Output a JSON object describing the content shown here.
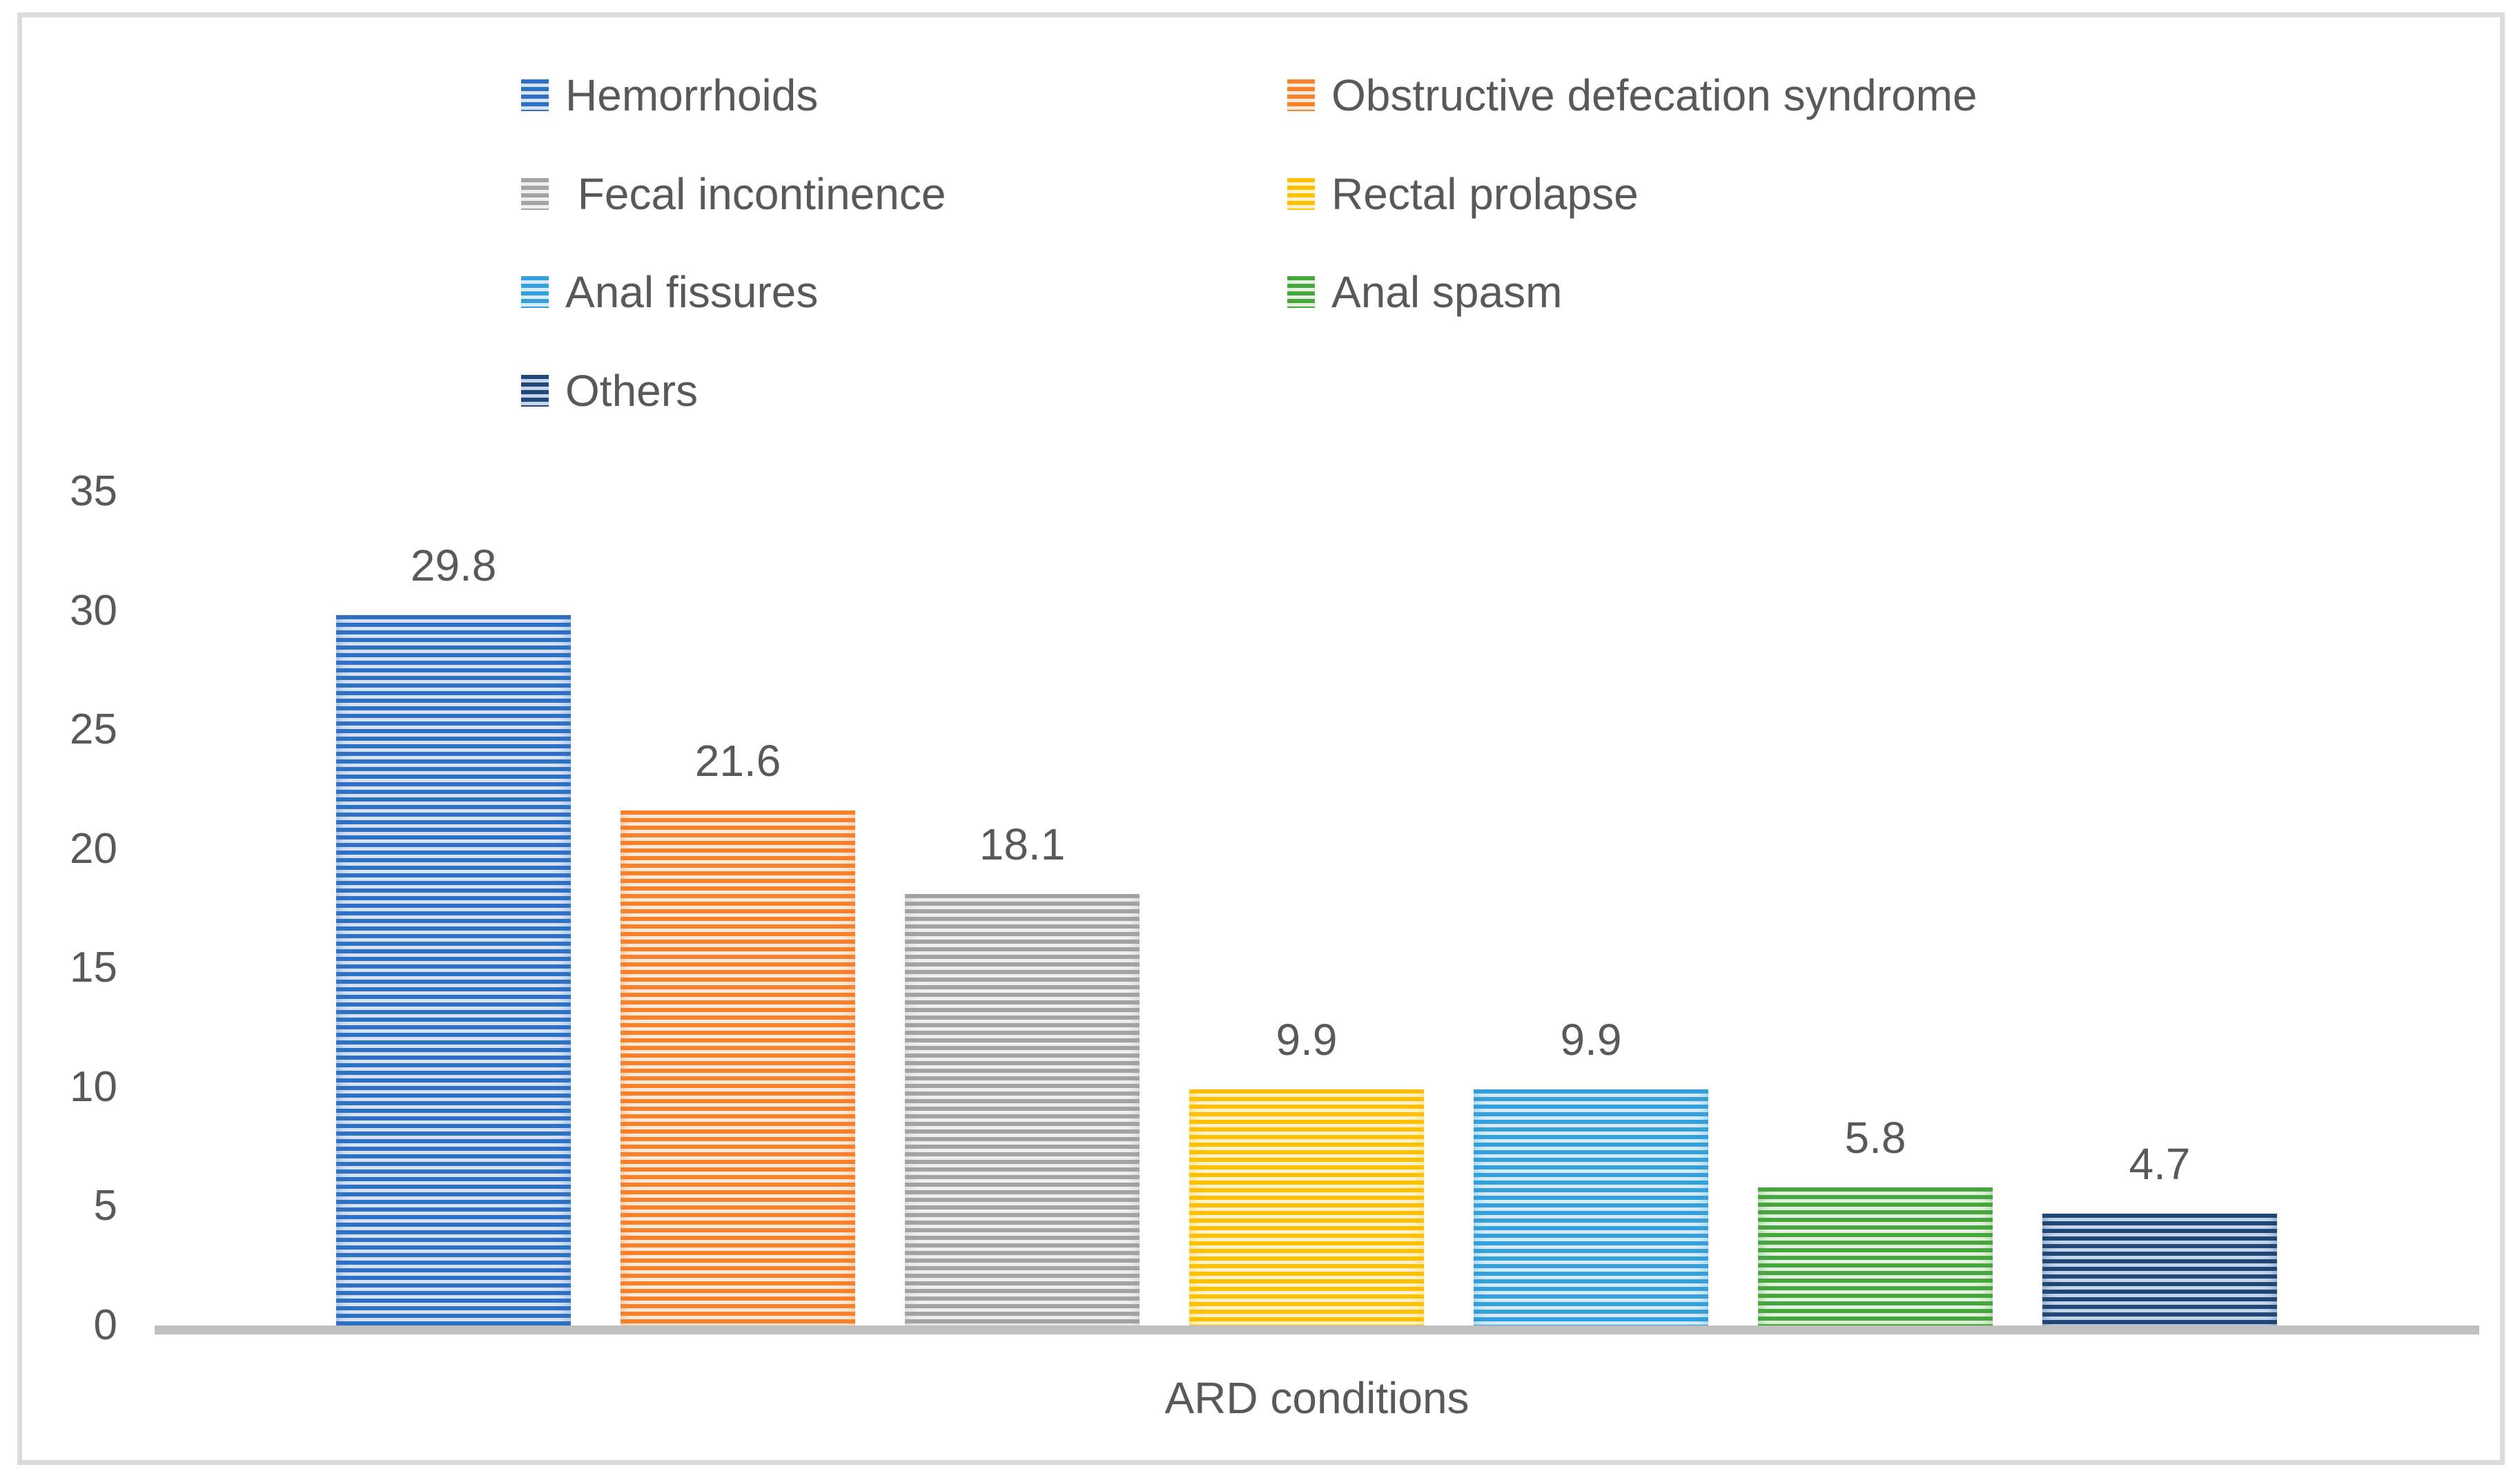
{
  "chart_data": {
    "type": "bar",
    "title": "",
    "xlabel": "ARD conditions",
    "ylabel": "",
    "ylim": [
      0,
      35
    ],
    "yticks": [
      0,
      5,
      10,
      15,
      20,
      25,
      30,
      35
    ],
    "grid": false,
    "legend_position": "top",
    "categories": [
      "Hemorrhoids",
      "Obstructive defecation syndrome",
      "Fecal incontinence",
      "Rectal prolapse",
      "Anal fissures",
      "Anal spasm",
      "Others"
    ],
    "values": [
      29.8,
      21.6,
      18.1,
      9.9,
      9.9,
      5.8,
      4.7
    ],
    "data_labels": [
      "29.8",
      "21.6",
      "18.1",
      "9.9",
      "9.9",
      "5.8",
      "4.7"
    ],
    "legend_labels": [
      "Hemorrhoids",
      "Obstructive defecation syndrome",
      " Fecal incontinence",
      "Rectal prolapse",
      "Anal fissures",
      "Anal spasm",
      "Others"
    ],
    "series_colors": [
      {
        "name": "blue",
        "dark": "#2E71C4",
        "light": "#D7E2F3"
      },
      {
        "name": "orange",
        "dark": "#F8812B",
        "light": "#FDEBDC"
      },
      {
        "name": "gray",
        "dark": "#A3A3A3",
        "light": "#EFEFEF"
      },
      {
        "name": "yellow",
        "dark": "#FFC002",
        "light": "#FFF3CD"
      },
      {
        "name": "light-blue",
        "dark": "#35A0DB",
        "light": "#D6ECF9"
      },
      {
        "name": "green",
        "dark": "#48A63F",
        "light": "#E3F1DE"
      },
      {
        "name": "navy",
        "dark": "#1F4878",
        "light": "#C6D4EA"
      }
    ],
    "pattern": "horizontal-stripes"
  },
  "axis_style": {
    "baseline_color": "#BFBFBF",
    "text_color": "#595959"
  }
}
